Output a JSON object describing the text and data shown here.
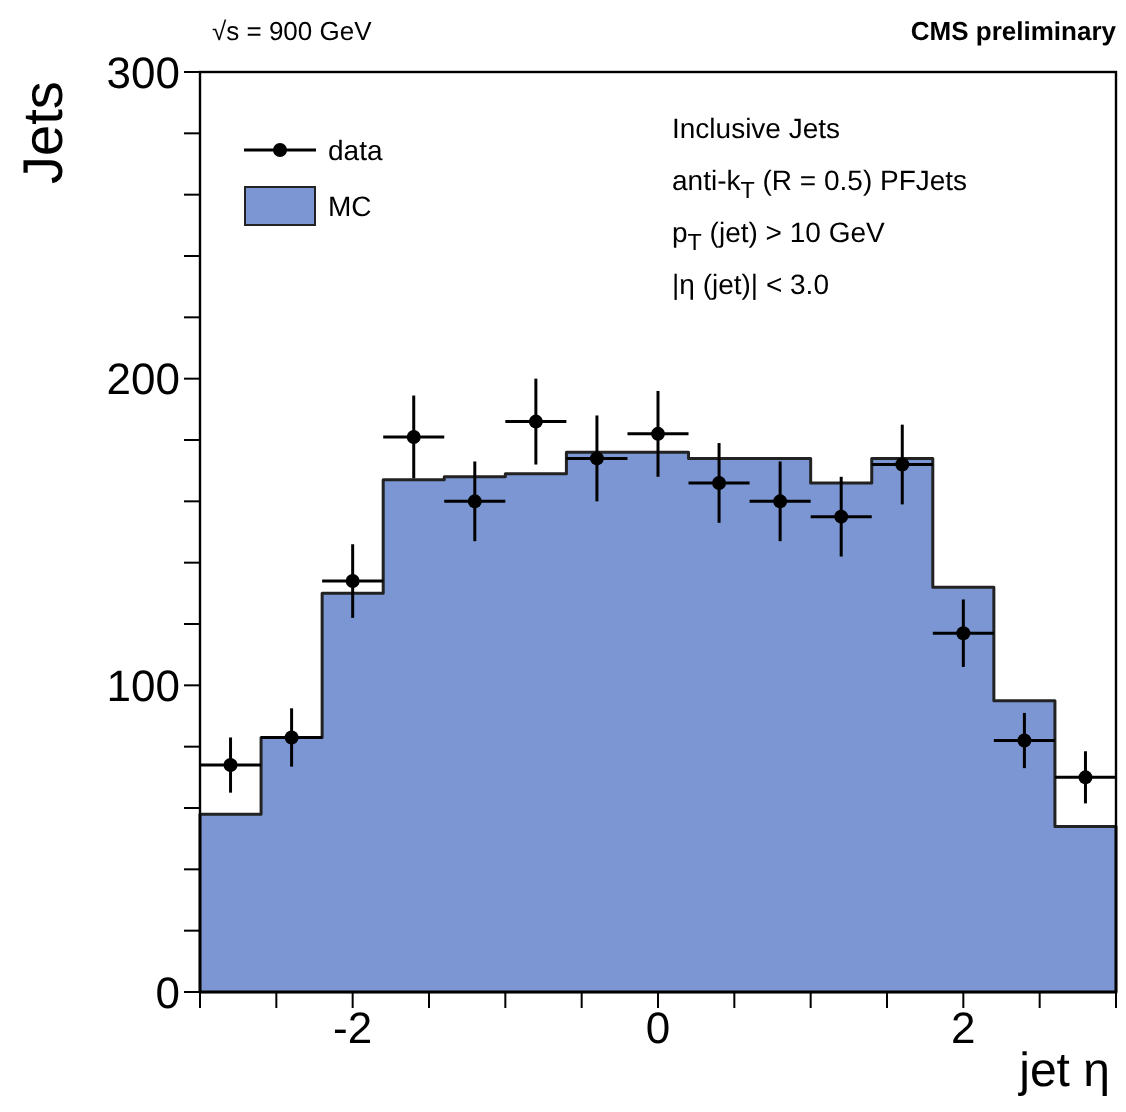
{
  "chart_data": {
    "type": "histogram",
    "xlabel": "jet η",
    "ylabel": "Jets",
    "bins": [
      -3,
      -2.6,
      -2.2,
      -1.8,
      -1.4,
      -1.0,
      -0.6,
      -0.2,
      0.2,
      0.6,
      1.0,
      1.4,
      1.8,
      2.2,
      2.6,
      3.0
    ],
    "series": [
      {
        "name": "data",
        "type": "scatter",
        "color": "#000000",
        "x": [
          -2.8,
          -2.4,
          -2.0,
          -1.6,
          -1.2,
          -0.8,
          -0.4,
          0,
          0.4,
          0.8,
          1.2,
          1.6,
          2.0,
          2.4,
          2.8
        ],
        "values": [
          74,
          83,
          134,
          181,
          160,
          186,
          174,
          182,
          166,
          160,
          155,
          172,
          117,
          82,
          70
        ],
        "errors": [
          9,
          9.5,
          12,
          13.5,
          13,
          14,
          14,
          14,
          13,
          13,
          13,
          13,
          11,
          9,
          8.5
        ],
        "xerrors": [
          0.2,
          0.2,
          0.2,
          0.2,
          0.2,
          0.2,
          0.2,
          0.2,
          0.2,
          0.2,
          0.2,
          0.2,
          0.2,
          0.2,
          0.2
        ],
        "marker": "circle"
      },
      {
        "name": "MC",
        "color": "#7b96d2",
        "values": [
          58,
          83,
          130,
          167,
          168,
          169,
          176,
          176,
          174,
          174,
          166,
          174,
          132,
          95,
          54
        ]
      }
    ],
    "xlim": [
      -3,
      3
    ],
    "xticks": [
      {
        "value": -3,
        "label": null
      },
      {
        "value": -2.5,
        "label": null
      },
      -2,
      {
        "value": -1.5,
        "label": null
      },
      {
        "value": -1,
        "label": null
      },
      {
        "value": -0.5,
        "label": null
      },
      0,
      {
        "value": 0.5,
        "label": null
      },
      {
        "value": 1,
        "label": null
      },
      {
        "value": 1.5,
        "label": null
      },
      2,
      {
        "value": 2.5,
        "label": null
      },
      {
        "value": 3,
        "label": null
      }
    ],
    "ylim": [
      0,
      300
    ],
    "yticks": [
      0,
      {
        "value": 20,
        "label": null
      },
      {
        "value": 40,
        "label": null
      },
      {
        "value": 60,
        "label": null
      },
      {
        "value": 80,
        "label": null
      },
      100,
      {
        "value": 120,
        "label": null
      },
      {
        "value": 140,
        "label": null
      },
      {
        "value": 160,
        "label": null
      },
      {
        "value": 180,
        "label": null
      },
      200,
      {
        "value": 220,
        "label": null
      },
      {
        "value": 240,
        "label": null
      },
      {
        "value": 260,
        "label": null
      },
      {
        "value": 280,
        "label": null
      },
      300
    ],
    "grid": false,
    "legend": "top left",
    "annotations": [
      "√s = 900 GeV",
      "CMS preliminary",
      "Inclusive Jets",
      "anti-k$_{T}$ (R = 0.5) PFJets",
      "p$_{T}$ (jet) > 10 GeV",
      "|η (jet)| < 3.0"
    ]
  }
}
